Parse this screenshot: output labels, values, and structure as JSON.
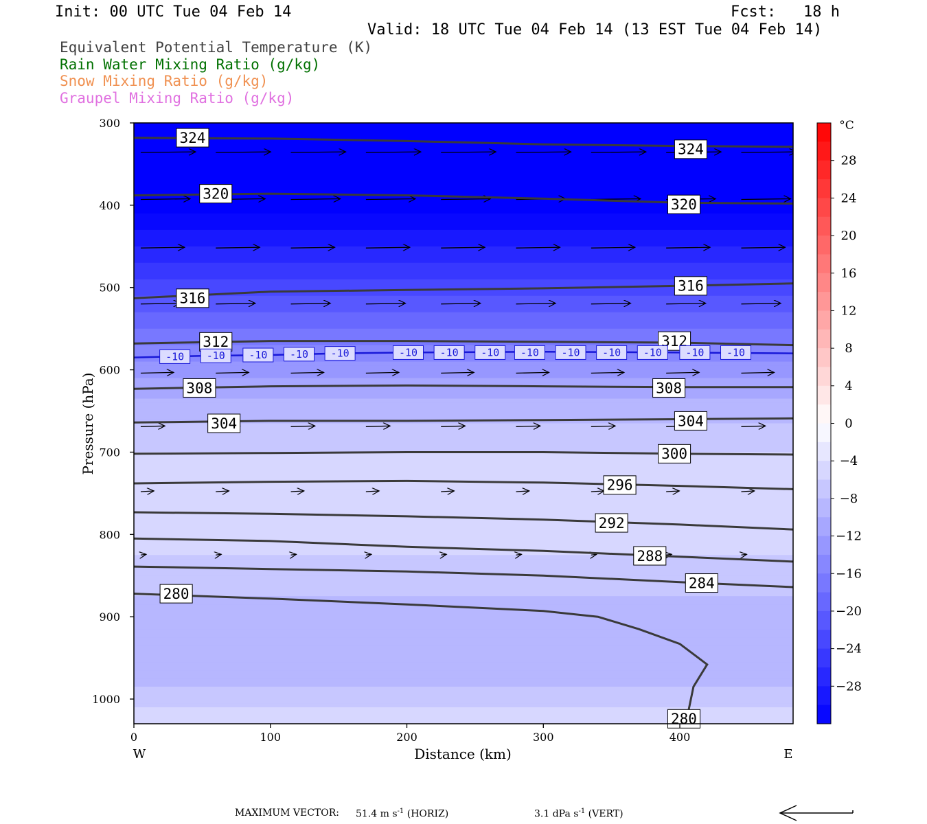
{
  "header": {
    "init": "Init: 00 UTC Tue 04 Feb 14",
    "fcst": "Fcst:   18 h",
    "valid": "Valid: 18 UTC Tue 04 Feb 14 (13 EST Tue 04 Feb 14)"
  },
  "legend": [
    {
      "text": "Equivalent Potential Temperature (K)",
      "color": "#404040"
    },
    {
      "text": "Rain Water Mixing Ratio (g/kg)",
      "color": "#007000"
    },
    {
      "text": "Snow Mixing Ratio (g/kg)",
      "color": "#f09050"
    },
    {
      "text": "Graupel Mixing Ratio (g/kg)",
      "color": "#e070e0"
    }
  ],
  "chart_data": {
    "type": "cross-section",
    "xlabel": "Distance (km)",
    "ylabel": "Pressure (hPa)",
    "x_ticks": [
      0,
      100,
      200,
      300,
      400
    ],
    "xlim": [
      0,
      483
    ],
    "y_ticks": [
      300,
      400,
      500,
      600,
      700,
      800,
      900,
      1000
    ],
    "ylim": [
      300,
      1030
    ],
    "y_scale": "linear",
    "x_end_labels": {
      "left": "W",
      "right": "E"
    },
    "colorbar": {
      "unit": "°C",
      "ticks": [
        28,
        24,
        20,
        16,
        12,
        8,
        4,
        0,
        -4,
        -8,
        -12,
        -16,
        -20,
        -24,
        -28
      ],
      "range": [
        -32,
        32
      ]
    },
    "shading_temp_profile": [
      {
        "p": 300,
        "t": -32
      },
      {
        "p": 400,
        "t": -31
      },
      {
        "p": 450,
        "t": -26
      },
      {
        "p": 500,
        "t": -21
      },
      {
        "p": 550,
        "t": -16
      },
      {
        "p": 600,
        "t": -11
      },
      {
        "p": 650,
        "t": -7
      },
      {
        "p": 700,
        "t": -4
      },
      {
        "p": 750,
        "t": -2
      },
      {
        "p": 800,
        "t": -3
      },
      {
        "p": 850,
        "t": -5
      },
      {
        "p": 900,
        "t": -7
      },
      {
        "p": 950,
        "t": -8
      },
      {
        "p": 1000,
        "t": -5
      },
      {
        "p": 1030,
        "t": -2
      }
    ],
    "theta_e_contours": [
      {
        "label": "324",
        "points": [
          [
            0,
            318
          ],
          [
            100,
            319
          ],
          [
            200,
            322
          ],
          [
            300,
            326
          ],
          [
            400,
            328
          ],
          [
            483,
            329
          ]
        ],
        "labels_at": [
          [
            43,
            318
          ],
          [
            408,
            332
          ]
        ]
      },
      {
        "label": "320",
        "points": [
          [
            0,
            388
          ],
          [
            100,
            386
          ],
          [
            200,
            388
          ],
          [
            300,
            392
          ],
          [
            400,
            397
          ],
          [
            483,
            398
          ]
        ],
        "labels_at": [
          [
            60,
            386
          ],
          [
            403,
            399
          ]
        ]
      },
      {
        "label": "316",
        "points": [
          [
            0,
            513
          ],
          [
            100,
            505
          ],
          [
            200,
            503
          ],
          [
            300,
            501
          ],
          [
            400,
            498
          ],
          [
            483,
            495
          ]
        ],
        "labels_at": [
          [
            43,
            513
          ],
          [
            408,
            498
          ]
        ]
      },
      {
        "label": "312",
        "points": [
          [
            0,
            568
          ],
          [
            100,
            565
          ],
          [
            200,
            565
          ],
          [
            300,
            566
          ],
          [
            400,
            567
          ],
          [
            483,
            570
          ]
        ],
        "labels_at": [
          [
            60,
            566
          ],
          [
            396,
            565
          ]
        ]
      },
      {
        "label": "308",
        "points": [
          [
            0,
            623
          ],
          [
            100,
            620
          ],
          [
            200,
            619
          ],
          [
            300,
            620
          ],
          [
            400,
            621
          ],
          [
            483,
            621
          ]
        ],
        "labels_at": [
          [
            48,
            622
          ],
          [
            392,
            622
          ]
        ]
      },
      {
        "label": "304",
        "points": [
          [
            0,
            664
          ],
          [
            100,
            662
          ],
          [
            200,
            662
          ],
          [
            300,
            661
          ],
          [
            400,
            660
          ],
          [
            483,
            659
          ]
        ],
        "labels_at": [
          [
            66,
            665
          ],
          [
            408,
            662
          ]
        ]
      },
      {
        "label": "300",
        "points": [
          [
            0,
            702
          ],
          [
            100,
            701
          ],
          [
            200,
            700
          ],
          [
            300,
            700
          ],
          [
            400,
            702
          ],
          [
            483,
            703
          ]
        ],
        "labels_at": [
          [
            396,
            702
          ]
        ]
      },
      {
        "label": "296",
        "points": [
          [
            0,
            738
          ],
          [
            100,
            736
          ],
          [
            200,
            735
          ],
          [
            300,
            737
          ],
          [
            400,
            741
          ],
          [
            483,
            745
          ]
        ],
        "labels_at": [
          [
            356,
            740
          ]
        ]
      },
      {
        "label": "292",
        "points": [
          [
            0,
            773
          ],
          [
            100,
            775
          ],
          [
            200,
            778
          ],
          [
            300,
            782
          ],
          [
            400,
            788
          ],
          [
            483,
            794
          ]
        ],
        "labels_at": [
          [
            350,
            786
          ]
        ]
      },
      {
        "label": "288",
        "points": [
          [
            0,
            805
          ],
          [
            100,
            808
          ],
          [
            200,
            815
          ],
          [
            300,
            820
          ],
          [
            400,
            827
          ],
          [
            483,
            833
          ]
        ],
        "labels_at": [
          [
            378,
            826
          ]
        ]
      },
      {
        "label": "284",
        "points": [
          [
            0,
            839
          ],
          [
            100,
            842
          ],
          [
            200,
            845
          ],
          [
            300,
            850
          ],
          [
            400,
            858
          ],
          [
            483,
            864
          ]
        ],
        "labels_at": [
          [
            416,
            859
          ]
        ]
      },
      {
        "label": "280",
        "points": [
          [
            0,
            872
          ],
          [
            100,
            878
          ],
          [
            200,
            885
          ],
          [
            300,
            893
          ],
          [
            340,
            900
          ],
          [
            370,
            915
          ],
          [
            400,
            933
          ],
          [
            420,
            958
          ],
          [
            410,
            985
          ],
          [
            405,
            1025
          ]
        ],
        "labels_at": [
          [
            31,
            872
          ],
          [
            403,
            1024
          ]
        ]
      }
    ],
    "temp_contours": [
      {
        "label": "-10",
        "points": [
          [
            0,
            585
          ],
          [
            50,
            583
          ],
          [
            100,
            582
          ],
          [
            150,
            580
          ],
          [
            200,
            579
          ],
          [
            300,
            578
          ],
          [
            400,
            579
          ],
          [
            483,
            580
          ]
        ],
        "labels_at": [
          [
            30,
            584
          ],
          [
            60,
            583
          ],
          [
            91,
            582
          ],
          [
            121,
            581
          ],
          [
            151,
            580
          ],
          [
            201,
            579
          ],
          [
            231,
            579
          ],
          [
            261,
            579
          ],
          [
            290,
            579
          ],
          [
            320,
            579
          ],
          [
            350,
            579
          ],
          [
            380,
            579
          ],
          [
            411,
            579
          ],
          [
            441,
            579
          ]
        ]
      }
    ],
    "max_vector": {
      "label": "MAXIMUM VECTOR:",
      "horiz": "51.4 m s",
      "horiz_unit": "(HORIZ)",
      "vert": "3.1 dPa s",
      "vert_unit": "(VERT)",
      "exp": "-1"
    }
  }
}
